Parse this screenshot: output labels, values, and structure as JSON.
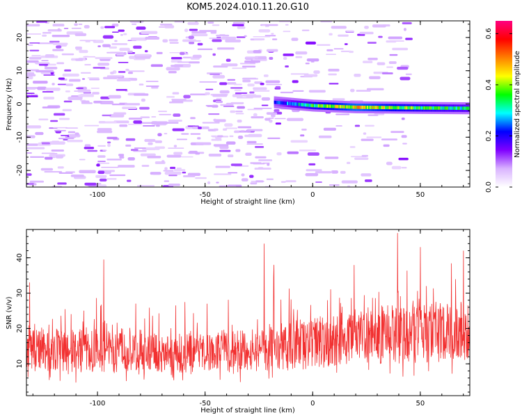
{
  "figure": {
    "title": "KOM5.2024.010.11.20.G10"
  },
  "chart_data": [
    {
      "type": "heatmap",
      "xlabel": "Height of straight line (km)",
      "ylabel": "Frequency (Hz)",
      "xlim": [
        -133,
        73
      ],
      "ylim": [
        -25,
        25
      ],
      "xticks": [
        -100,
        -50,
        0,
        50
      ],
      "yticks": [
        -20,
        -10,
        0,
        10,
        20
      ],
      "colorbar": {
        "label": "Normalized spectral amplitude",
        "range": [
          0.0,
          0.65
        ],
        "ticks": [
          0.0,
          0.2,
          0.4,
          0.6
        ],
        "tick_labels": [
          "0.0",
          "0.2",
          "0.4",
          "0.6"
        ],
        "colormap": [
          "#ffffff",
          "#d9b3ff",
          "#8000ff",
          "#0000ff",
          "#00ffff",
          "#00ff00",
          "#ffff00",
          "#ff8000",
          "#ff0000",
          "#ff0080"
        ]
      },
      "features": [
        {
          "kind": "noise-field",
          "x_range": [
            -133,
            -15
          ],
          "y_range": [
            -25,
            25
          ],
          "amplitude": [
            0.05,
            0.12
          ]
        },
        {
          "kind": "signal-line",
          "x": [
            -18,
            0,
            20,
            50,
            73
          ],
          "y": [
            0.5,
            -0.5,
            -1.0,
            -1.2,
            -1.3
          ],
          "amplitude": [
            0.2,
            0.35,
            0.45,
            0.35,
            0.3
          ]
        }
      ]
    },
    {
      "type": "line",
      "xlabel": "Height of straight line (km)",
      "ylabel": "SNR (v/v)",
      "xlim": [
        -133,
        73
      ],
      "ylim": [
        1,
        48
      ],
      "xticks": [
        -100,
        -50,
        0,
        50
      ],
      "yticks": [
        10,
        20,
        30,
        40
      ],
      "color": "#f23030",
      "trend": {
        "x": [
          -133,
          -100,
          -50,
          -20,
          0,
          25,
          50,
          73
        ],
        "mean": [
          14,
          13.5,
          13,
          14,
          16,
          18,
          19,
          19
        ],
        "spread": [
          6,
          6,
          5.5,
          6.5,
          7.5,
          8,
          9,
          8
        ]
      },
      "peaks": [
        {
          "x": -131.5,
          "y": 33
        },
        {
          "x": -97,
          "y": 39.5
        },
        {
          "x": -22.5,
          "y": 44
        },
        {
          "x": -18,
          "y": 38
        },
        {
          "x": 39.5,
          "y": 47
        },
        {
          "x": 50,
          "y": 43
        },
        {
          "x": 70,
          "y": 42
        }
      ]
    }
  ]
}
